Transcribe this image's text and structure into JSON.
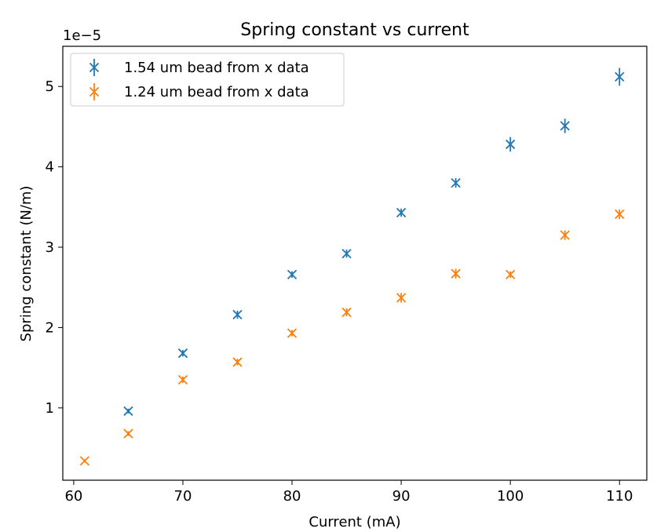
{
  "chart_data": {
    "type": "scatter",
    "title": "Spring constant vs current",
    "xlabel": "Current (mA)",
    "ylabel": "Spring constant (N/m)",
    "y_scale_label": "1e−5",
    "xlim": [
      59,
      112.5
    ],
    "ylim": [
      0.1,
      5.5
    ],
    "xticks": [
      60,
      70,
      80,
      90,
      100,
      110
    ],
    "yticks": [
      1,
      2,
      3,
      4,
      5
    ],
    "grid": false,
    "legend_position": "upper-left",
    "marker": "x-with-errorbar",
    "series": [
      {
        "name": "1.54 um bead from x data",
        "color": "#1f77b4",
        "x": [
          65,
          70,
          75,
          80,
          85,
          90,
          95,
          100,
          105,
          110
        ],
        "y": [
          0.96,
          1.68,
          2.16,
          2.66,
          2.92,
          3.43,
          3.8,
          4.28,
          4.51,
          5.12
        ],
        "yerr": [
          0.03,
          0.04,
          0.05,
          0.04,
          0.05,
          0.05,
          0.06,
          0.09,
          0.09,
          0.11
        ]
      },
      {
        "name": "1.24 um bead from x data",
        "color": "#ff7f0e",
        "x": [
          61,
          65,
          70,
          75,
          80,
          85,
          90,
          95,
          100,
          105,
          110
        ],
        "y": [
          0.34,
          0.68,
          1.35,
          1.57,
          1.93,
          2.19,
          2.37,
          2.67,
          2.66,
          3.15,
          3.41
        ],
        "yerr": [
          0.02,
          0.03,
          0.04,
          0.04,
          0.04,
          0.05,
          0.06,
          0.06,
          0.04,
          0.06,
          0.06
        ]
      }
    ]
  }
}
